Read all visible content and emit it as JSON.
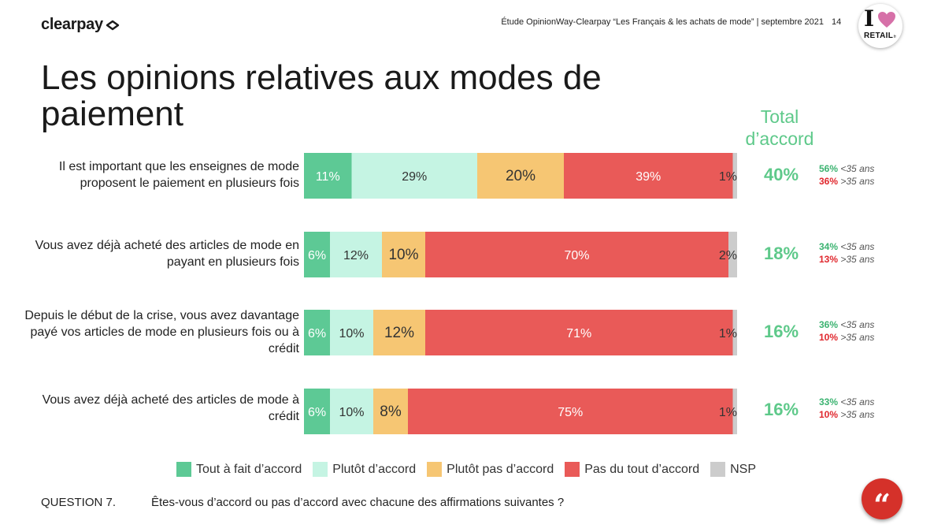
{
  "header": {
    "brand": "clearpay",
    "study": "Étude OpinionWay-Clearpay “Les Français & les achats de mode” | septembre 2021",
    "page_number": "14",
    "badge_top": "I",
    "badge_text": "RETAIL",
    "badge_suffix": "fr"
  },
  "title": "Les opinions relatives aux modes de paiement",
  "total_header": "Total d’accord",
  "colors": {
    "tout_a_fait": "#5dc995",
    "plutot": "#c5f4e3",
    "plutot_pas": "#f6c673",
    "pas_du_tout": "#e95a58",
    "nsp": "#cccccc",
    "total_green": "#5ec98a",
    "under35": "#3cb371",
    "over35": "#e0282e"
  },
  "chart_data": {
    "type": "bar",
    "orientation": "horizontal",
    "stacked": true,
    "title": "Les opinions relatives aux modes de paiement",
    "xlim": [
      0,
      100
    ],
    "unit": "%",
    "grid": false,
    "legend_position": "bottom",
    "series_names": [
      "Tout à fait d’accord",
      "Plutôt d’accord",
      "Plutôt pas d’accord",
      "Pas du tout d’accord",
      "NSP"
    ],
    "rows": [
      {
        "label": "Il est important que les enseignes de mode proposent le paiement en plusieurs fois",
        "values": [
          11,
          29,
          20,
          39,
          1
        ],
        "total": "40%",
        "under35": "56%",
        "over35": "36%"
      },
      {
        "label": "Vous avez déjà acheté des articles de mode en payant en plusieurs fois",
        "values": [
          6,
          12,
          10,
          70,
          2
        ],
        "total": "18%",
        "under35": "34%",
        "over35": "13%"
      },
      {
        "label": "Depuis le début de la crise, vous avez davantage payé vos articles de mode en plusieurs fois ou à crédit",
        "values": [
          6,
          10,
          12,
          71,
          1
        ],
        "total": "16%",
        "under35": "36%",
        "over35": "10%"
      },
      {
        "label": "Vous avez déjà acheté des articles de mode à crédit",
        "values": [
          6,
          10,
          8,
          75,
          1
        ],
        "total": "16%",
        "under35": "33%",
        "over35": "10%"
      }
    ],
    "age_labels": {
      "under35": "<35 ans",
      "over35": ">35 ans"
    }
  },
  "legend": [
    "Tout à fait d’accord",
    "Plutôt d’accord",
    "Plutôt pas d’accord",
    "Pas du tout d’accord",
    "NSP"
  ],
  "question": {
    "number": "QUESTION 7.",
    "text": "Êtes-vous d’accord ou pas d’accord avec chacune des affirmations suivantes ?"
  },
  "quote_icon": "quote-icon"
}
